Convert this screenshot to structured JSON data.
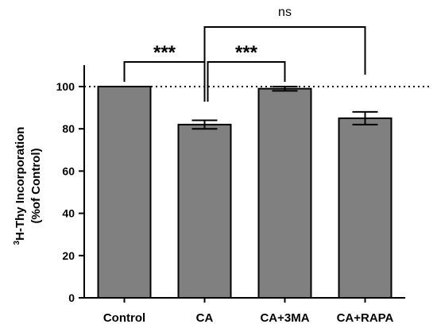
{
  "chart_data": {
    "type": "bar",
    "title": "",
    "xlabel": "",
    "ylabel_sup": "3",
    "ylabel_line1": "H-Thy Incorporation",
    "ylabel_line2": "(%of  Control)",
    "categories": [
      "Control",
      "CA",
      "CA+3MA",
      "CA+RAPA"
    ],
    "values": [
      100,
      82,
      99,
      85
    ],
    "errors": [
      0,
      2,
      1,
      3
    ],
    "ylim": [
      0,
      100
    ],
    "yticks": [
      0,
      20,
      40,
      60,
      80,
      100
    ],
    "reference_line": 100,
    "bar_color": "#808080",
    "grid": false,
    "legend": "none",
    "significance": [
      {
        "from": 0,
        "to": 1,
        "label": "***"
      },
      {
        "from": 1,
        "to": 2,
        "label": "***"
      },
      {
        "from": 1,
        "to": 3,
        "label": "ns"
      }
    ]
  }
}
